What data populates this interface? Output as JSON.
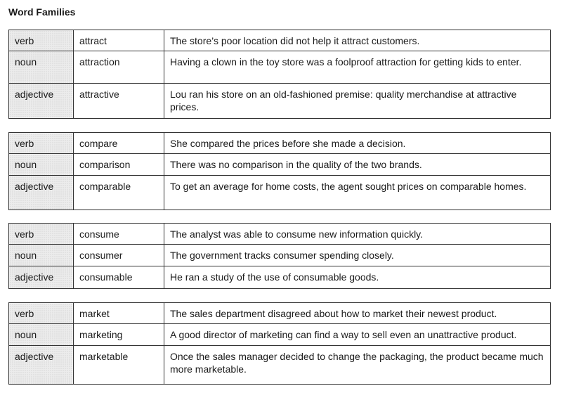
{
  "title": "Word Families",
  "tables": [
    {
      "rows": [
        {
          "pos": "verb",
          "word": "attract",
          "sentence": "The store’s poor location did not help it attract customers."
        },
        {
          "pos": "noun",
          "word": "attraction",
          "sentence": "Having a clown in the toy store was a foolproof attraction for getting kids to enter."
        },
        {
          "pos": "adjective",
          "word": "attractive",
          "sentence": "Lou ran his store on an old-fashioned premise: quality merchandise at attractive prices."
        }
      ]
    },
    {
      "rows": [
        {
          "pos": "verb",
          "word": "compare",
          "sentence": "She compared the prices before she made a decision."
        },
        {
          "pos": "noun",
          "word": "comparison",
          "sentence": "There was no comparison in the quality of the two brands."
        },
        {
          "pos": "adjective",
          "word": "comparable",
          "sentence": "To get an average for home costs, the agent sought prices on comparable homes."
        }
      ]
    },
    {
      "rows": [
        {
          "pos": "verb",
          "word": "consume",
          "sentence": "The analyst was able to consume new information quickly."
        },
        {
          "pos": "noun",
          "word": "consumer",
          "sentence": "The government tracks consumer spending closely."
        },
        {
          "pos": "adjective",
          "word": "consumable",
          "sentence": "He ran a study of the use of consumable goods."
        }
      ]
    },
    {
      "rows": [
        {
          "pos": "verb",
          "word": "market",
          "sentence": "The sales department disagreed about how to market their newest product."
        },
        {
          "pos": "noun",
          "word": "marketing",
          "sentence": "A good director of marketing can find a way to sell even an unattractive product."
        },
        {
          "pos": "adjective",
          "word": "marketable",
          "sentence": "Once the sales manager decided to change the packaging, the product became much more marketable."
        }
      ]
    }
  ]
}
